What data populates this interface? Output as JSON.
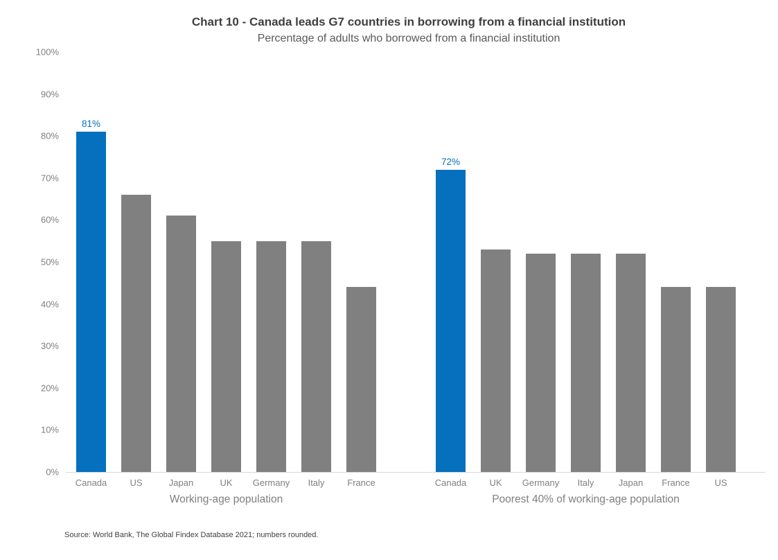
{
  "header": {
    "title": "Chart 10 - Canada leads G7 countries in borrowing from a financial institution",
    "subtitle": "Percentage of adults who borrowed from a financial institution"
  },
  "source": "Source: World Bank, The Global Findex Database 2021; numbers rounded.",
  "chart_data": {
    "type": "bar",
    "title": "Chart 10 - Canada leads G7 countries in borrowing from a financial institution",
    "subtitle": "Percentage of adults who borrowed from a financial institution",
    "xlabel": "",
    "ylabel": "",
    "ylim": [
      0,
      100
    ],
    "ytick_labels": [
      "0%",
      "10%",
      "20%",
      "30%",
      "40%",
      "50%",
      "60%",
      "70%",
      "80%",
      "90%",
      "100%"
    ],
    "grid": false,
    "legend": false,
    "colors": {
      "highlight_bar": "#0570be",
      "default_bar": "#808080",
      "data_label": "#0570be",
      "axis_text": "#7f7f7f",
      "baseline": "#d9d9d9"
    },
    "groups": [
      {
        "label": "Working-age population",
        "categories": [
          "Canada",
          "US",
          "Japan",
          "UK",
          "Germany",
          "Italy",
          "France"
        ],
        "values": [
          81,
          66,
          61,
          55,
          55,
          55,
          44
        ],
        "highlight": {
          "index": 0,
          "label": "81%"
        }
      },
      {
        "label": "Poorest 40% of working-age population",
        "categories": [
          "Canada",
          "UK",
          "Germany",
          "Italy",
          "Japan",
          "France",
          "US"
        ],
        "values": [
          72,
          53,
          52,
          52,
          52,
          44,
          44
        ],
        "highlight": {
          "index": 0,
          "label": "72%"
        }
      }
    ]
  }
}
